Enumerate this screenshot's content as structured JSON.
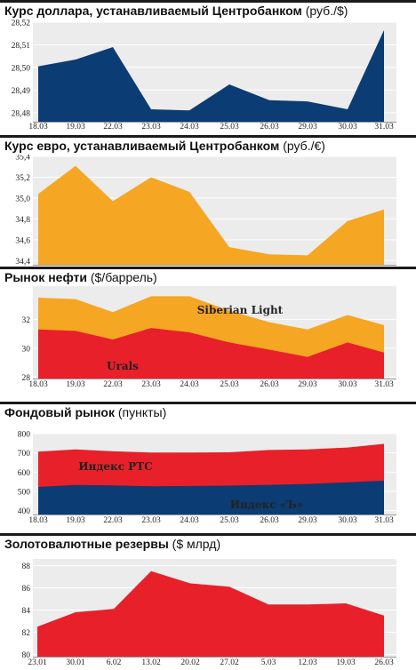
{
  "chart_data": [
    {
      "type": "area",
      "title": "Курс доллара, устанавливаемый Центробанком",
      "unit": "(руб./$)",
      "categories": [
        "18.03",
        "19.03",
        "22.03",
        "23.03",
        "24.03",
        "25.03",
        "26.03",
        "29.03",
        "30.03",
        "31.03"
      ],
      "y_ticks": [
        "28,52",
        "28,51",
        "28,50",
        "28,49",
        "28,48"
      ],
      "ylim": [
        28.476,
        28.52
      ],
      "series": [
        {
          "values": [
            28.5005,
            28.5035,
            28.509,
            28.4815,
            28.481,
            28.4925,
            28.4855,
            28.485,
            28.4815,
            28.5165
          ],
          "color": "#0b3c73"
        }
      ]
    },
    {
      "type": "area",
      "title": "Курс евро, устанавливаемый Центробанком",
      "unit": "(руб./€)",
      "categories": [
        "18.03",
        "19.03",
        "22.03",
        "23.03",
        "24.03",
        "25.03",
        "26.03",
        "29.03",
        "30.03",
        "31.03"
      ],
      "y_ticks": [
        "35,4",
        "35,2",
        "35,0",
        "34,8",
        "34,6",
        "34,4"
      ],
      "ylim": [
        34.36,
        35.4
      ],
      "series": [
        {
          "values": [
            35.04,
            35.31,
            34.97,
            35.2,
            35.06,
            34.53,
            34.46,
            34.45,
            34.78,
            34.89
          ],
          "color": "#f5a623"
        }
      ]
    },
    {
      "type": "area",
      "title": "Рынок нефти",
      "unit": "($/баррель)",
      "categories": [
        "18.03",
        "19.03",
        "22.03",
        "23.03",
        "24.03",
        "25.03",
        "26.03",
        "29.03",
        "30.03",
        "31.03"
      ],
      "y_ticks": [
        "32",
        "30",
        "28"
      ],
      "ylim": [
        27.9,
        34.3
      ],
      "series": [
        {
          "name": "Siberian Light",
          "values": [
            33.5,
            33.4,
            32.5,
            33.6,
            33.6,
            32.6,
            31.8,
            31.3,
            32.3,
            31.6
          ],
          "color": "#f5a623"
        },
        {
          "name": "Urals",
          "values": [
            31.3,
            31.2,
            30.6,
            31.4,
            31.1,
            30.4,
            29.9,
            29.4,
            30.4,
            29.7
          ],
          "color": "#e8202a"
        }
      ]
    },
    {
      "type": "area",
      "title": "Фондовый рынок",
      "unit": "(пункты)",
      "categories": [
        "18.03",
        "19.03",
        "22.03",
        "23.03",
        "24.03",
        "25.03",
        "26.03",
        "29.03",
        "30.03",
        "31.03"
      ],
      "y_ticks": [
        "800",
        "700",
        "600",
        "500",
        "400"
      ],
      "ylim": [
        380,
        800
      ],
      "series": [
        {
          "name": "Индекс РТС",
          "values": [
            707,
            718,
            708,
            702,
            702,
            703,
            715,
            718,
            728,
            747
          ],
          "color": "#e8202a"
        },
        {
          "name": "Индекс «Ъ»",
          "values": [
            523,
            533,
            531,
            527,
            528,
            530,
            534,
            539,
            547,
            556
          ],
          "color": "#0b3c73"
        }
      ]
    },
    {
      "type": "area",
      "title": "Золотовалютные резервы",
      "unit": "($ млрд)",
      "categories": [
        "23.01",
        "30.01",
        "6.02",
        "13.02",
        "20.02",
        "27.02",
        "5.03",
        "12.03",
        "19.03",
        "26.03"
      ],
      "y_ticks": [
        "88",
        "86",
        "84",
        "82",
        "80"
      ],
      "ylim": [
        79.8,
        88.6
      ],
      "series": [
        {
          "values": [
            82.5,
            83.8,
            84.1,
            87.5,
            86.4,
            86.1,
            84.5,
            84.5,
            84.6,
            83.5
          ],
          "color": "#e8202a"
        }
      ]
    }
  ]
}
